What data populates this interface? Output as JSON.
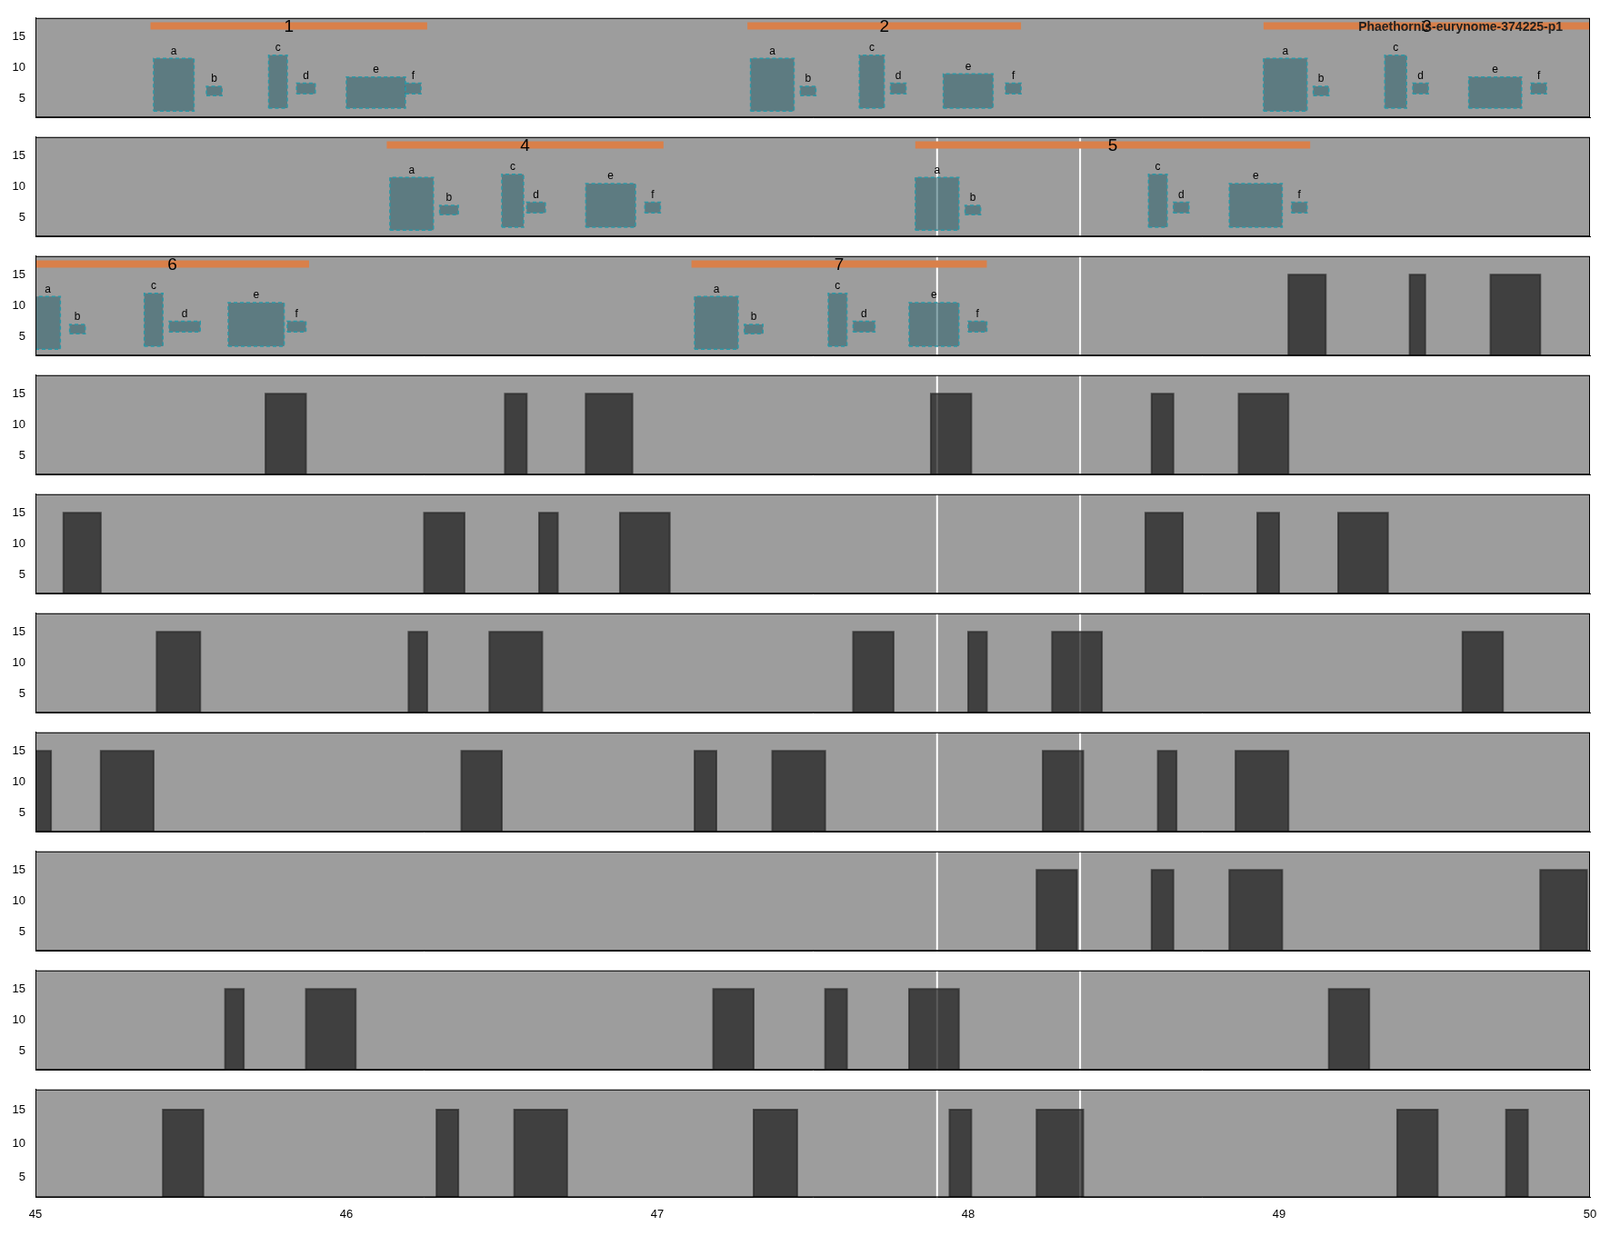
{
  "chart_data": {
    "type": "spectrogram",
    "title": "Phaethornis-eurynome-374225-p1",
    "xlim": [
      45,
      50
    ],
    "xticks": [
      45,
      46,
      47,
      48,
      49,
      50
    ],
    "ylim": [
      2,
      18
    ],
    "yticks": [
      5,
      10,
      15
    ],
    "rows": [
      {
        "calls": [],
        "vlines": [],
        "selections": [
          {
            "label": "1",
            "x": [
              45.37,
              46.26
            ]
          },
          {
            "label": "2",
            "x": [
              47.29,
              48.17
            ]
          },
          {
            "label": "3",
            "x": [
              48.95,
              50
            ]
          }
        ],
        "boxes": [
          {
            "label": "a",
            "x": [
              45.38,
              45.51
            ],
            "y": [
              3,
              11.5
            ]
          },
          {
            "label": "b",
            "x": [
              45.55,
              45.6
            ],
            "y": [
              5.5,
              7
            ]
          },
          {
            "label": "c",
            "x": [
              45.75,
              45.81
            ],
            "y": [
              3.5,
              12
            ]
          },
          {
            "label": "d",
            "x": [
              45.84,
              45.9
            ],
            "y": [
              5.8,
              7.5
            ]
          },
          {
            "label": "e",
            "x": [
              46.0,
              46.19
            ],
            "y": [
              3.5,
              8.5
            ]
          },
          {
            "label": "f",
            "x": [
              46.19,
              46.24
            ],
            "y": [
              5.8,
              7.5
            ]
          },
          {
            "label": "a",
            "x": [
              47.3,
              47.44
            ],
            "y": [
              3,
              11.5
            ]
          },
          {
            "label": "b",
            "x": [
              47.46,
              47.51
            ],
            "y": [
              5.5,
              7
            ]
          },
          {
            "label": "c",
            "x": [
              47.65,
              47.73
            ],
            "y": [
              3.5,
              12
            ]
          },
          {
            "label": "d",
            "x": [
              47.75,
              47.8
            ],
            "y": [
              5.8,
              7.5
            ]
          },
          {
            "label": "e",
            "x": [
              47.92,
              48.08
            ],
            "y": [
              3.5,
              9
            ]
          },
          {
            "label": "f",
            "x": [
              48.12,
              48.17
            ],
            "y": [
              5.8,
              7.5
            ]
          },
          {
            "label": "a",
            "x": [
              48.95,
              49.09
            ],
            "y": [
              3,
              11.5
            ]
          },
          {
            "label": "b",
            "x": [
              49.11,
              49.16
            ],
            "y": [
              5.5,
              7
            ]
          },
          {
            "label": "c",
            "x": [
              49.34,
              49.41
            ],
            "y": [
              3.5,
              12
            ]
          },
          {
            "label": "d",
            "x": [
              49.43,
              49.48
            ],
            "y": [
              5.8,
              7.5
            ]
          },
          {
            "label": "e",
            "x": [
              49.61,
              49.78
            ],
            "y": [
              3.5,
              8.5
            ]
          },
          {
            "label": "f",
            "x": [
              49.81,
              49.86
            ],
            "y": [
              5.8,
              7.5
            ]
          }
        ]
      },
      {
        "calls": [],
        "vlines": [
          47.9,
          48.36
        ],
        "selections": [
          {
            "label": "4",
            "x": [
              46.13,
              47.02
            ]
          },
          {
            "label": "5",
            "x": [
              47.83,
              49.1
            ]
          }
        ],
        "boxes": [
          {
            "label": "a",
            "x": [
              46.14,
              46.28
            ],
            "y": [
              3,
              11.5
            ]
          },
          {
            "label": "b",
            "x": [
              46.3,
              46.36
            ],
            "y": [
              5.5,
              7
            ]
          },
          {
            "label": "c",
            "x": [
              46.5,
              46.57
            ],
            "y": [
              3.5,
              12
            ]
          },
          {
            "label": "d",
            "x": [
              46.58,
              46.64
            ],
            "y": [
              5.8,
              7.5
            ]
          },
          {
            "label": "e",
            "x": [
              46.77,
              46.93
            ],
            "y": [
              3.5,
              10.5
            ]
          },
          {
            "label": "f",
            "x": [
              46.96,
              47.01
            ],
            "y": [
              5.8,
              7.5
            ]
          },
          {
            "label": "a",
            "x": [
              47.83,
              47.97
            ],
            "y": [
              3,
              11.5
            ]
          },
          {
            "label": "b",
            "x": [
              47.99,
              48.04
            ],
            "y": [
              5.5,
              7
            ]
          },
          {
            "label": "c",
            "x": [
              48.58,
              48.64
            ],
            "y": [
              3.5,
              12
            ]
          },
          {
            "label": "d",
            "x": [
              48.66,
              48.71
            ],
            "y": [
              5.8,
              7.5
            ]
          },
          {
            "label": "e",
            "x": [
              48.84,
              49.01
            ],
            "y": [
              3.5,
              10.5
            ]
          },
          {
            "label": "f",
            "x": [
              49.04,
              49.09
            ],
            "y": [
              5.8,
              7.5
            ]
          }
        ]
      },
      {
        "calls": [
          [
            49.03,
            49.15,
            2,
            15
          ],
          [
            49.42,
            49.47,
            2,
            15
          ],
          [
            49.68,
            49.84,
            2,
            15
          ]
        ],
        "vlines": [
          47.9,
          48.36
        ],
        "selections": [
          {
            "label": "6",
            "x": [
              45,
              45.88
            ]
          },
          {
            "label": "7",
            "x": [
              47.11,
              48.06
            ]
          }
        ],
        "boxes": [
          {
            "label": "a",
            "x": [
              45.0,
              45.08
            ],
            "y": [
              3,
              11.5
            ]
          },
          {
            "label": "b",
            "x": [
              45.11,
              45.16
            ],
            "y": [
              5.5,
              7
            ]
          },
          {
            "label": "c",
            "x": [
              45.35,
              45.41
            ],
            "y": [
              3.5,
              12
            ]
          },
          {
            "label": "d",
            "x": [
              45.43,
              45.53
            ],
            "y": [
              5.8,
              7.5
            ]
          },
          {
            "label": "e",
            "x": [
              45.62,
              45.8
            ],
            "y": [
              3.5,
              10.5
            ]
          },
          {
            "label": "f",
            "x": [
              45.81,
              45.87
            ],
            "y": [
              5.8,
              7.5
            ]
          },
          {
            "label": "a",
            "x": [
              47.12,
              47.26
            ],
            "y": [
              3,
              11.5
            ]
          },
          {
            "label": "b",
            "x": [
              47.28,
              47.34
            ],
            "y": [
              5.5,
              7
            ]
          },
          {
            "label": "c",
            "x": [
              47.55,
              47.61
            ],
            "y": [
              3.5,
              12
            ]
          },
          {
            "label": "d",
            "x": [
              47.63,
              47.7
            ],
            "y": [
              5.8,
              7.5
            ]
          },
          {
            "label": "e",
            "x": [
              47.81,
              47.97
            ],
            "y": [
              3.5,
              10.5
            ]
          },
          {
            "label": "f",
            "x": [
              48.0,
              48.06
            ],
            "y": [
              5.8,
              7.5
            ]
          }
        ]
      },
      {
        "calls": [
          [
            45.74,
            45.87,
            2,
            15
          ],
          [
            46.51,
            46.58,
            2,
            15
          ],
          [
            46.77,
            46.92,
            2,
            15
          ],
          [
            47.88,
            48.01,
            2,
            15
          ],
          [
            48.59,
            48.66,
            2,
            15
          ],
          [
            48.87,
            49.03,
            2,
            15
          ]
        ],
        "vlines": [
          47.9,
          48.36
        ],
        "selections": [],
        "boxes": []
      },
      {
        "calls": [
          [
            45.09,
            45.21,
            2,
            15
          ],
          [
            46.25,
            46.38,
            2,
            15
          ],
          [
            46.62,
            46.68,
            2,
            15
          ],
          [
            46.88,
            47.04,
            2,
            15
          ],
          [
            48.57,
            48.69,
            2,
            15
          ],
          [
            48.93,
            49.0,
            2,
            15
          ],
          [
            49.19,
            49.35,
            2,
            15
          ]
        ],
        "vlines": [
          47.9,
          48.36
        ],
        "selections": [],
        "boxes": []
      },
      {
        "calls": [
          [
            45.39,
            45.53,
            2,
            15
          ],
          [
            46.2,
            46.26,
            2,
            15
          ],
          [
            46.46,
            46.63,
            2,
            15
          ],
          [
            47.63,
            47.76,
            2,
            15
          ],
          [
            48.0,
            48.06,
            2,
            15
          ],
          [
            48.27,
            48.43,
            2,
            15
          ],
          [
            49.59,
            49.72,
            2,
            15
          ]
        ],
        "vlines": [
          47.9,
          48.36
        ],
        "selections": [],
        "boxes": []
      },
      {
        "calls": [
          [
            45.0,
            45.05,
            2,
            15
          ],
          [
            45.21,
            45.38,
            2,
            15
          ],
          [
            46.37,
            46.5,
            2,
            15
          ],
          [
            47.12,
            47.19,
            2,
            15
          ],
          [
            47.37,
            47.54,
            2,
            15
          ],
          [
            48.24,
            48.37,
            2,
            15
          ],
          [
            48.61,
            48.67,
            2,
            15
          ],
          [
            48.86,
            49.03,
            2,
            15
          ]
        ],
        "vlines": [
          47.9,
          48.36
        ],
        "selections": [],
        "boxes": []
      },
      {
        "calls": [
          [
            48.22,
            48.35,
            2,
            15
          ],
          [
            48.59,
            48.66,
            2,
            15
          ],
          [
            48.84,
            49.01,
            2,
            15
          ],
          [
            49.84,
            49.99,
            2,
            15
          ]
        ],
        "vlines": [
          47.9,
          48.36
        ],
        "selections": [],
        "boxes": []
      },
      {
        "calls": [
          [
            45.61,
            45.67,
            2,
            15
          ],
          [
            45.87,
            46.03,
            2,
            15
          ],
          [
            47.18,
            47.31,
            2,
            15
          ],
          [
            47.54,
            47.61,
            2,
            15
          ],
          [
            47.81,
            47.97,
            2,
            15
          ],
          [
            49.16,
            49.29,
            2,
            15
          ]
        ],
        "vlines": [
          47.9,
          48.36
        ],
        "selections": [],
        "boxes": []
      },
      {
        "calls": [
          [
            45.41,
            45.54,
            2,
            15
          ],
          [
            46.29,
            46.36,
            2,
            15
          ],
          [
            46.54,
            46.71,
            2,
            15
          ],
          [
            47.31,
            47.45,
            2,
            15
          ],
          [
            47.94,
            48.01,
            2,
            15
          ],
          [
            48.22,
            48.37,
            2,
            15
          ],
          [
            49.38,
            49.51,
            2,
            15
          ],
          [
            49.73,
            49.8,
            2,
            15
          ]
        ],
        "vlines": [
          47.9,
          48.36
        ],
        "selections": [],
        "boxes": []
      }
    ]
  }
}
